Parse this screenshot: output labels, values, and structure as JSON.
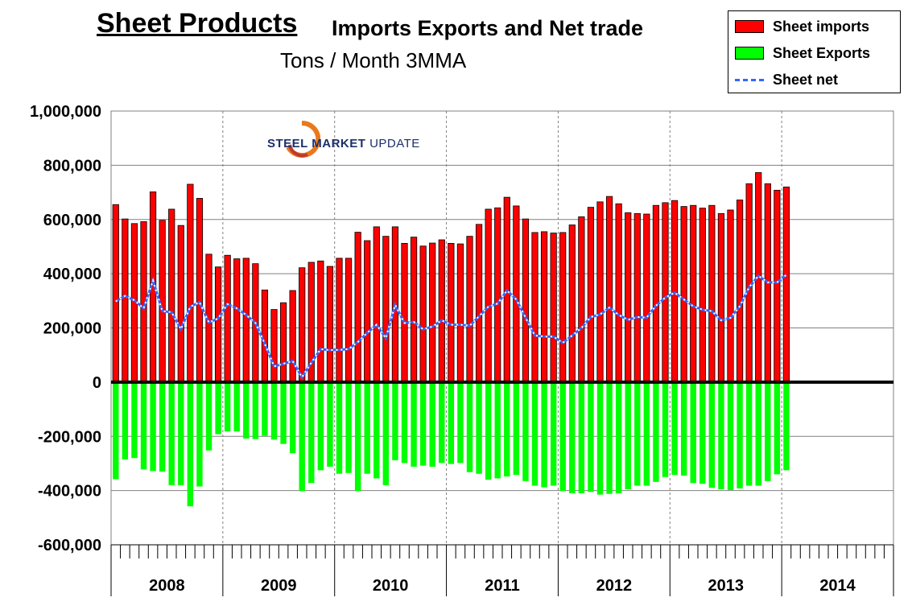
{
  "title": {
    "main": "Sheet Products",
    "rest": "Imports Exports and Net trade",
    "subtitle": "Tons / Month 3MMA"
  },
  "logo": {
    "bold": "STEEL MARKET",
    "light": "UPDATE"
  },
  "legend": [
    {
      "label": "Sheet imports",
      "color": "#ff0000",
      "kind": "box"
    },
    {
      "label": "Sheet Exports",
      "color": "#00ff00",
      "kind": "box"
    },
    {
      "label": "Sheet net",
      "color": "#3366ff",
      "kind": "line"
    }
  ],
  "chart_data": {
    "type": "bar",
    "title": "Sheet Products Imports Exports and Net trade",
    "subtitle": "Tons / Month 3MMA",
    "xlabel": "",
    "ylabel": "",
    "ylim": [
      -600000,
      1000000
    ],
    "y_ticks": [
      1000000,
      800000,
      600000,
      400000,
      200000,
      0,
      -200000,
      -400000,
      -600000
    ],
    "y_tick_labels": [
      "1,000,000",
      "800,000",
      "600,000",
      "400,000",
      "200,000",
      "0",
      "-200,000",
      "-400,000",
      "-600,000"
    ],
    "year_labels": [
      "2008",
      "2009",
      "2010",
      "2011",
      "2012",
      "2013",
      "2014"
    ],
    "months_per_year": 12,
    "start": "2008-01",
    "grid": true,
    "legend_position": "top-right",
    "series": [
      {
        "name": "Sheet imports",
        "color": "#ff0000",
        "values": [
          655000,
          602000,
          585000,
          592000,
          702000,
          597000,
          638000,
          578000,
          730000,
          678000,
          472000,
          425000,
          468000,
          455000,
          457000,
          437000,
          340000,
          268000,
          293000,
          338000,
          422000,
          442000,
          447000,
          427000,
          457000,
          457000,
          553000,
          522000,
          573000,
          538000,
          573000,
          512000,
          535000,
          502000,
          513000,
          525000,
          512000,
          510000,
          538000,
          582000,
          638000,
          643000,
          682000,
          650000,
          602000,
          552000,
          555000,
          550000,
          552000,
          580000,
          610000,
          645000,
          665000,
          685000,
          658000,
          625000,
          622000,
          620000,
          652000,
          662000,
          670000,
          648000,
          652000,
          642000,
          652000,
          622000,
          635000,
          672000,
          732000,
          773000,
          732000,
          708000,
          720000
        ]
      },
      {
        "name": "Sheet Exports",
        "color": "#00ff00",
        "values": [
          -358000,
          -285000,
          -280000,
          -322000,
          -328000,
          -330000,
          -380000,
          -380000,
          -458000,
          -385000,
          -252000,
          -192000,
          -182000,
          -182000,
          -208000,
          -210000,
          -198000,
          -212000,
          -228000,
          -262000,
          -402000,
          -372000,
          -325000,
          -312000,
          -338000,
          -335000,
          -402000,
          -338000,
          -355000,
          -380000,
          -288000,
          -298000,
          -312000,
          -308000,
          -312000,
          -298000,
          -302000,
          -298000,
          -332000,
          -338000,
          -360000,
          -355000,
          -348000,
          -342000,
          -365000,
          -382000,
          -388000,
          -382000,
          -402000,
          -410000,
          -410000,
          -405000,
          -415000,
          -412000,
          -410000,
          -395000,
          -382000,
          -382000,
          -368000,
          -350000,
          -342000,
          -345000,
          -372000,
          -375000,
          -390000,
          -395000,
          -398000,
          -392000,
          -382000,
          -382000,
          -365000,
          -340000,
          -325000
        ]
      },
      {
        "name": "Sheet net",
        "color": "#3366ff",
        "values": [
          298000,
          318000,
          302000,
          272000,
          375000,
          262000,
          258000,
          195000,
          278000,
          295000,
          220000,
          235000,
          288000,
          272000,
          248000,
          218000,
          142000,
          58000,
          68000,
          78000,
          18000,
          72000,
          122000,
          118000,
          119000,
          122000,
          148000,
          182000,
          212000,
          162000,
          285000,
          218000,
          222000,
          195000,
          205000,
          228000,
          212000,
          212000,
          208000,
          243000,
          278000,
          290000,
          338000,
          305000,
          238000,
          172000,
          168000,
          168000,
          145000,
          172000,
          200000,
          240000,
          250000,
          275000,
          248000,
          230000,
          240000,
          238000,
          282000,
          312000,
          330000,
          305000,
          280000,
          267000,
          262000,
          228000,
          237000,
          280000,
          350000,
          392000,
          368000,
          368000,
          396000
        ]
      }
    ]
  }
}
